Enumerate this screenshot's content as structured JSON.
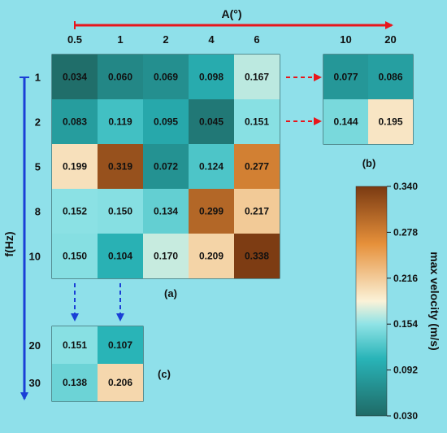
{
  "chart_data": {
    "type": "heatmap",
    "x_axis_label": "A(°)",
    "y_axis_label": "f(Hz)",
    "colorbar_label": "max velocity (m/s)",
    "colorbar_ticks": [
      "0.340",
      "0.278",
      "0.216",
      "0.154",
      "0.092",
      "0.030"
    ],
    "vmin": 0.03,
    "vmax": 0.34,
    "colors": {
      "background": "#8fe0ea",
      "low": "#1f6a66",
      "mid_low": "#29b4b8",
      "mid": "#fbf2d8",
      "mid_high": "#e6903a",
      "high": "#7a3a12",
      "arrow_red": "#e8161c",
      "arrow_blue": "#1a3fd6"
    },
    "panels": [
      {
        "label": "(a)",
        "x": [
          "0.5",
          "1",
          "2",
          "4",
          "6"
        ],
        "y": [
          "1",
          "2",
          "5",
          "8",
          "10"
        ],
        "values": [
          [
            "0.034",
            "0.060",
            "0.069",
            "0.098",
            "0.167"
          ],
          [
            "0.083",
            "0.119",
            "0.095",
            "0.045",
            "0.151"
          ],
          [
            "0.199",
            "0.319",
            "0.072",
            "0.124",
            "0.277"
          ],
          [
            "0.152",
            "0.150",
            "0.134",
            "0.299",
            "0.217"
          ],
          [
            "0.150",
            "0.104",
            "0.170",
            "0.209",
            "0.338"
          ]
        ]
      },
      {
        "label": "(b)",
        "x": [
          "10",
          "20"
        ],
        "y": [
          "1",
          "2"
        ],
        "values": [
          [
            "0.077",
            "0.086"
          ],
          [
            "0.144",
            "0.195"
          ]
        ]
      },
      {
        "label": "(c)",
        "x": [
          "0.5",
          "1"
        ],
        "y": [
          "20",
          "30"
        ],
        "values": [
          [
            "0.151",
            "0.107"
          ],
          [
            "0.138",
            "0.206"
          ]
        ]
      }
    ]
  }
}
